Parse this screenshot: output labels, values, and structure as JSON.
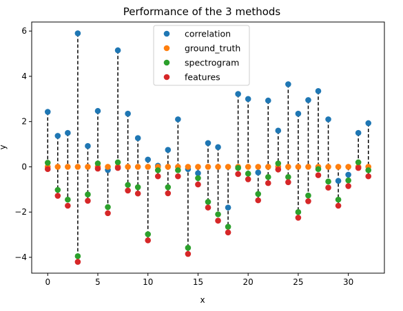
{
  "chart_data": {
    "type": "scatter",
    "title": "Performance of the 3 methods",
    "xlabel": "x",
    "ylabel": "y",
    "xlim": [
      -1.6,
      33.6
    ],
    "ylim": [
      -4.7,
      6.4
    ],
    "xticks": [
      0,
      5,
      10,
      15,
      20,
      25,
      30
    ],
    "yticks": [
      -4,
      -2,
      0,
      2,
      4,
      6
    ],
    "grid": false,
    "legend_position": "top-center",
    "x": [
      0,
      1,
      2,
      3,
      4,
      5,
      6,
      7,
      8,
      9,
      10,
      11,
      12,
      13,
      14,
      15,
      16,
      17,
      18,
      19,
      20,
      21,
      22,
      23,
      24,
      25,
      26,
      27,
      28,
      29,
      30,
      31,
      32
    ],
    "series": [
      {
        "name": "correlation",
        "color": "#1f77b4",
        "values": [
          2.43,
          1.37,
          1.5,
          5.9,
          0.92,
          2.47,
          -0.14,
          5.15,
          2.35,
          1.27,
          0.32,
          0.05,
          0.75,
          2.1,
          -0.1,
          -0.28,
          1.05,
          0.87,
          -1.8,
          3.22,
          3.0,
          -0.25,
          2.93,
          1.6,
          3.65,
          2.35,
          2.95,
          3.35,
          2.1,
          -0.62,
          -0.35,
          1.5,
          1.93
        ]
      },
      {
        "name": "ground_truth",
        "color": "#ff7f0e",
        "values": [
          0,
          0,
          0,
          0,
          0,
          0,
          0,
          0,
          0,
          0,
          0,
          0,
          0,
          0,
          0,
          0,
          0,
          0,
          0,
          0,
          0,
          0,
          0,
          0,
          0,
          0,
          0,
          0,
          0,
          0,
          0,
          0,
          0
        ]
      },
      {
        "name": "spectrogram",
        "color": "#2ca02c",
        "values": [
          0.18,
          -1.02,
          -1.45,
          -3.95,
          -1.22,
          0.15,
          -1.78,
          0.2,
          -0.8,
          -0.9,
          -2.98,
          -0.15,
          -0.9,
          -0.15,
          -3.58,
          -0.5,
          -1.55,
          -2.1,
          -2.65,
          -0.05,
          -0.3,
          -1.2,
          -0.45,
          0.15,
          -0.45,
          -2.0,
          -1.27,
          -0.1,
          -0.65,
          -1.45,
          -0.6,
          0.2,
          -0.15
        ]
      },
      {
        "name": "features",
        "color": "#d62728",
        "values": [
          -0.1,
          -1.28,
          -1.72,
          -4.2,
          -1.5,
          -0.08,
          -2.05,
          -0.05,
          -1.05,
          -1.18,
          -3.25,
          -0.42,
          -1.17,
          -0.42,
          -3.85,
          -0.78,
          -1.8,
          -2.38,
          -2.9,
          -0.32,
          -0.55,
          -1.48,
          -0.72,
          -0.12,
          -0.68,
          -2.25,
          -1.52,
          -0.37,
          -0.92,
          -1.72,
          -0.85,
          -0.05,
          -0.42
        ]
      }
    ]
  }
}
